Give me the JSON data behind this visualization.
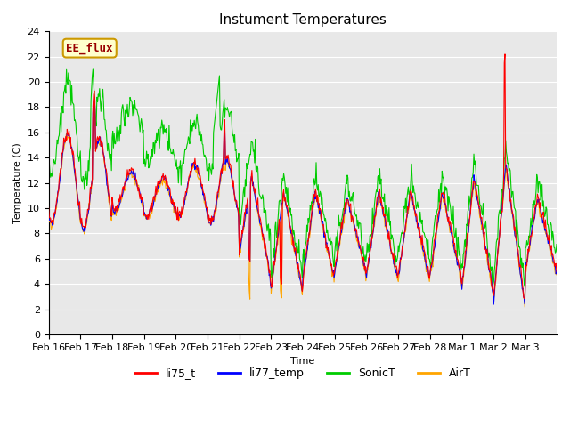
{
  "title": "Instument Temperatures",
  "xlabel": "Time",
  "ylabel": "Temperature (C)",
  "ylim": [
    0,
    24
  ],
  "yticks": [
    0,
    2,
    4,
    6,
    8,
    10,
    12,
    14,
    16,
    18,
    20,
    22,
    24
  ],
  "x_labels": [
    "Feb 16",
    "Feb 17",
    "Feb 18",
    "Feb 19",
    "Feb 20",
    "Feb 21",
    "Feb 22",
    "Feb 23",
    "Feb 24",
    "Feb 25",
    "Feb 26",
    "Feb 27",
    "Feb 28",
    "Mar 1",
    "Mar 2",
    "Mar 3"
  ],
  "series_colors": {
    "li75_t": "#ff0000",
    "li77_temp": "#0000ff",
    "SonicT": "#00cc00",
    "AirT": "#ffa500"
  },
  "annotation_text": "EE_flux",
  "annotation_bg": "#ffffcc",
  "annotation_border": "#cc9900",
  "annotation_text_color": "#990000",
  "plot_bg": "#e8e8e8",
  "grid_color": "#ffffff",
  "title_fontsize": 11,
  "axis_fontsize": 8,
  "legend_fontsize": 9
}
